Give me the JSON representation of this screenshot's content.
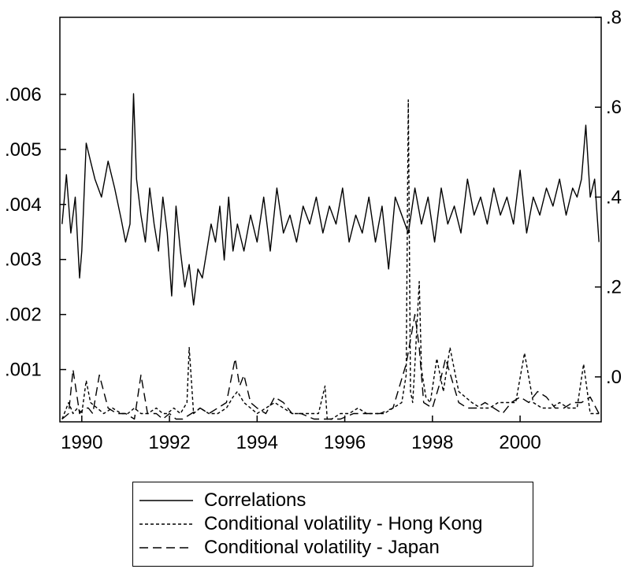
{
  "chart_data": {
    "type": "line",
    "x_range": [
      1989.5,
      2001.85
    ],
    "x_ticks": [
      {
        "value": 1990,
        "label": "1990"
      },
      {
        "value": 1992,
        "label": "1992"
      },
      {
        "value": 1994,
        "label": "1994"
      },
      {
        "value": 1996,
        "label": "1996"
      },
      {
        "value": 1998,
        "label": "1998"
      },
      {
        "value": 2000,
        "label": "2000"
      }
    ],
    "left_axis": {
      "range": [
        5e-05,
        0.0074
      ],
      "ticks": [
        {
          "value": 0.001,
          "label": ".001"
        },
        {
          "value": 0.002,
          "label": ".002"
        },
        {
          "value": 0.003,
          "label": ".003"
        },
        {
          "value": 0.004,
          "label": ".004"
        },
        {
          "value": 0.005,
          "label": ".005"
        },
        {
          "value": 0.006,
          "label": ".006"
        }
      ]
    },
    "right_axis": {
      "range": [
        -0.1,
        0.8
      ],
      "ticks": [
        {
          "value": 0.0,
          "label": ".0"
        },
        {
          "value": 0.2,
          "label": ".2"
        },
        {
          "value": 0.4,
          "label": ".4"
        },
        {
          "value": 0.6,
          "label": ".6"
        },
        {
          "value": 0.8,
          "label": ".8"
        }
      ]
    },
    "series": [
      {
        "name": "Correlations",
        "axis": "right",
        "style": "solid",
        "color": "#000000",
        "x": [
          1989.55,
          1989.65,
          1989.75,
          1989.85,
          1989.95,
          1990.0,
          1990.1,
          1990.2,
          1990.3,
          1990.45,
          1990.6,
          1990.75,
          1990.9,
          1991.0,
          1991.1,
          1991.18,
          1991.25,
          1991.35,
          1991.45,
          1991.55,
          1991.65,
          1991.75,
          1991.85,
          1991.95,
          1992.05,
          1992.15,
          1992.25,
          1992.35,
          1992.45,
          1992.55,
          1992.65,
          1992.75,
          1992.85,
          1992.95,
          1993.05,
          1993.15,
          1993.25,
          1993.35,
          1993.45,
          1993.55,
          1993.7,
          1993.85,
          1994.0,
          1994.15,
          1994.3,
          1994.45,
          1994.6,
          1994.75,
          1994.9,
          1995.05,
          1995.2,
          1995.35,
          1995.5,
          1995.65,
          1995.8,
          1995.95,
          1996.1,
          1996.25,
          1996.4,
          1996.55,
          1996.7,
          1996.85,
          1997.0,
          1997.15,
          1997.3,
          1997.45,
          1997.6,
          1997.75,
          1997.9,
          1998.05,
          1998.2,
          1998.35,
          1998.5,
          1998.65,
          1998.8,
          1998.95,
          1999.1,
          1999.25,
          1999.4,
          1999.55,
          1999.7,
          1999.85,
          2000.0,
          2000.15,
          2000.3,
          2000.45,
          2000.6,
          2000.75,
          2000.9,
          2001.05,
          2001.2,
          2001.3,
          2001.4,
          2001.5,
          2001.6,
          2001.7,
          2001.8
        ],
        "values": [
          0.34,
          0.45,
          0.32,
          0.4,
          0.22,
          0.28,
          0.52,
          0.48,
          0.44,
          0.4,
          0.48,
          0.42,
          0.35,
          0.3,
          0.34,
          0.63,
          0.44,
          0.36,
          0.3,
          0.42,
          0.34,
          0.28,
          0.4,
          0.32,
          0.18,
          0.38,
          0.28,
          0.2,
          0.25,
          0.16,
          0.24,
          0.22,
          0.28,
          0.34,
          0.3,
          0.38,
          0.26,
          0.4,
          0.28,
          0.34,
          0.28,
          0.36,
          0.3,
          0.4,
          0.28,
          0.42,
          0.32,
          0.36,
          0.3,
          0.38,
          0.34,
          0.4,
          0.32,
          0.38,
          0.34,
          0.42,
          0.3,
          0.36,
          0.32,
          0.4,
          0.3,
          0.38,
          0.24,
          0.4,
          0.36,
          0.32,
          0.42,
          0.34,
          0.4,
          0.3,
          0.42,
          0.34,
          0.38,
          0.32,
          0.44,
          0.36,
          0.4,
          0.34,
          0.42,
          0.36,
          0.4,
          0.34,
          0.46,
          0.32,
          0.4,
          0.36,
          0.42,
          0.38,
          0.44,
          0.36,
          0.42,
          0.4,
          0.44,
          0.56,
          0.4,
          0.44,
          0.3
        ]
      },
      {
        "name": "Conditional volatility - Hong Kong",
        "axis": "left",
        "style": "short-dash",
        "color": "#000000",
        "x": [
          1989.55,
          1989.7,
          1989.8,
          1989.9,
          1990.0,
          1990.1,
          1990.2,
          1990.35,
          1990.5,
          1990.7,
          1990.9,
          1991.05,
          1991.2,
          1991.35,
          1991.5,
          1991.7,
          1991.85,
          1991.95,
          1992.1,
          1992.25,
          1992.4,
          1992.45,
          1992.55,
          1992.7,
          1992.9,
          1993.1,
          1993.3,
          1993.45,
          1993.55,
          1993.7,
          1993.85,
          1994.0,
          1994.2,
          1994.4,
          1994.6,
          1994.8,
          1995.0,
          1995.2,
          1995.4,
          1995.55,
          1995.6,
          1995.7,
          1995.9,
          1996.1,
          1996.3,
          1996.5,
          1996.7,
          1996.9,
          1997.1,
          1997.3,
          1997.4,
          1997.45,
          1997.5,
          1997.55,
          1997.6,
          1997.7,
          1997.75,
          1997.85,
          1997.95,
          1998.1,
          1998.25,
          1998.4,
          1998.5,
          1998.6,
          1998.75,
          1998.9,
          1999.1,
          1999.3,
          1999.5,
          1999.7,
          1999.9,
          2000.1,
          2000.3,
          2000.5,
          2000.7,
          2000.9,
          2001.1,
          2001.3,
          2001.45,
          2001.6,
          2001.8
        ],
        "values": [
          0.0001,
          0.0004,
          0.0002,
          0.0003,
          0.0002,
          0.0008,
          0.0004,
          0.0003,
          0.0002,
          0.0003,
          0.0002,
          0.0002,
          0.0003,
          0.0002,
          0.0002,
          0.0003,
          0.0002,
          0.0002,
          0.0003,
          0.0002,
          0.0004,
          0.0014,
          0.0002,
          0.0003,
          0.0002,
          0.0002,
          0.0003,
          0.0005,
          0.0006,
          0.0004,
          0.0003,
          0.0002,
          0.0003,
          0.0004,
          0.0003,
          0.0002,
          0.0002,
          0.0002,
          0.0002,
          0.0007,
          0.0001,
          0.0001,
          0.0002,
          0.0002,
          0.0003,
          0.0002,
          0.0002,
          0.0002,
          0.0003,
          0.0004,
          0.0009,
          0.0059,
          0.0006,
          0.0004,
          0.0011,
          0.0026,
          0.001,
          0.0005,
          0.0004,
          0.0012,
          0.0006,
          0.0014,
          0.001,
          0.0006,
          0.0005,
          0.0004,
          0.0003,
          0.0003,
          0.0004,
          0.0004,
          0.0004,
          0.0013,
          0.0004,
          0.0003,
          0.0003,
          0.0004,
          0.0003,
          0.0003,
          0.0011,
          0.0002,
          0.0002
        ]
      },
      {
        "name": "Conditional volatility - Japan",
        "axis": "left",
        "style": "long-dash",
        "color": "#000000",
        "x": [
          1989.55,
          1989.7,
          1989.8,
          1989.95,
          1990.05,
          1990.15,
          1990.25,
          1990.4,
          1990.6,
          1990.8,
          1991.0,
          1991.2,
          1991.35,
          1991.5,
          1991.7,
          1991.85,
          1992.0,
          1992.15,
          1992.3,
          1992.5,
          1992.7,
          1992.9,
          1993.1,
          1993.3,
          1993.5,
          1993.6,
          1993.7,
          1993.85,
          1994.0,
          1994.2,
          1994.4,
          1994.6,
          1994.8,
          1995.0,
          1995.3,
          1995.6,
          1995.9,
          1996.2,
          1996.5,
          1996.8,
          1997.1,
          1997.4,
          1997.6,
          1997.7,
          1997.8,
          1998.0,
          1998.15,
          1998.3,
          1998.45,
          1998.6,
          1998.8,
          1999.0,
          1999.2,
          1999.4,
          1999.6,
          1999.8,
          2000.0,
          2000.2,
          2000.4,
          2000.6,
          2000.8,
          2001.0,
          2001.2,
          2001.4,
          2001.6,
          2001.8
        ],
        "values": [
          0.0001,
          0.0002,
          0.001,
          0.0002,
          0.0003,
          0.0003,
          0.0002,
          0.0009,
          0.0003,
          0.0002,
          0.0002,
          0.0001,
          0.0009,
          0.0002,
          0.0002,
          0.0001,
          0.0002,
          0.0001,
          0.0001,
          0.0002,
          0.0003,
          0.0002,
          0.0003,
          0.0004,
          0.0012,
          0.0007,
          0.0009,
          0.0004,
          0.0003,
          0.0002,
          0.0005,
          0.0004,
          0.0002,
          0.0002,
          0.0001,
          0.0001,
          0.0001,
          0.0002,
          0.0002,
          0.0002,
          0.0003,
          0.0011,
          0.002,
          0.0014,
          0.0004,
          0.0003,
          0.0007,
          0.0012,
          0.0008,
          0.0004,
          0.0003,
          0.0003,
          0.0004,
          0.0003,
          0.0002,
          0.0004,
          0.0005,
          0.0004,
          0.0006,
          0.0005,
          0.0003,
          0.0003,
          0.0004,
          0.0004,
          0.0005,
          0.0002
        ]
      }
    ]
  }
}
